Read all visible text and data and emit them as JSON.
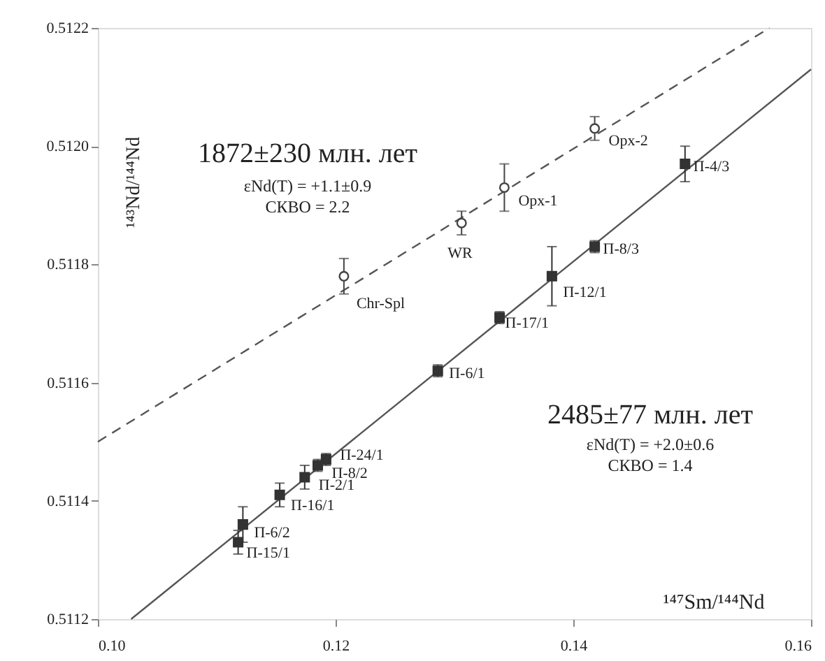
{
  "chart_data": {
    "type": "scatter",
    "xlabel": "¹⁴⁷Sm/¹⁴⁴Nd",
    "ylabel": "¹⁴³Nd/¹⁴⁴Nd",
    "xlim": [
      0.1,
      0.16
    ],
    "ylim": [
      0.5112,
      0.5122
    ],
    "xticks": [
      {
        "value": 0.1,
        "label": "0.10"
      },
      {
        "value": 0.12,
        "label": "0.12"
      },
      {
        "value": 0.14,
        "label": "0.14"
      },
      {
        "value": 0.16,
        "label": "0.16"
      }
    ],
    "yticks": [
      0.5112,
      0.5114,
      0.5116,
      0.5118,
      {
        "value": 0.512,
        "label": "0.5120"
      },
      0.5122
    ],
    "grid": false,
    "series": [
      {
        "type": "line",
        "color": "#555555",
        "line_style": "dashed",
        "x": [
          0.1,
          0.1565
        ],
        "values": [
          0.5115,
          0.5122
        ]
      },
      {
        "type": "line",
        "color": "#555555",
        "line_style": "solid",
        "x": [
          0.1028,
          0.16
        ],
        "values": [
          0.5112,
          0.51213
        ]
      },
      {
        "color": "#444444",
        "marker": "circle",
        "x": [
          0.1207,
          0.1306,
          0.1342,
          0.1418
        ],
        "values": [
          0.51178,
          0.51187,
          0.51193,
          0.51203
        ],
        "errors": [
          3e-05,
          2e-05,
          4e-05,
          2e-05
        ]
      },
      {
        "color": "#333333",
        "marker": "square",
        "x": [
          0.1494,
          0.1418,
          0.1382,
          0.1338,
          0.1286,
          0.1192,
          0.1185,
          0.1174,
          0.1153,
          0.1122,
          0.1118
        ],
        "values": [
          0.51197,
          0.51183,
          0.51178,
          0.51171,
          0.51162,
          0.51147,
          0.51146,
          0.51144,
          0.51141,
          0.51136,
          0.51133
        ],
        "errors": [
          3e-05,
          1e-05,
          5e-05,
          1e-05,
          1e-05,
          1e-05,
          1e-05,
          2e-05,
          2e-05,
          3e-05,
          2e-05
        ]
      }
    ],
    "annotations": [
      "1872±230 млн. лет",
      "εNd(T) = +1.1±0.9",
      "СКВО = 2.2",
      "2485±77 млн. лет",
      "εNd(T) = +2.0±0.6",
      "СКВО = 1.4",
      {
        "text": "Chr-Spl",
        "x": 0.1207,
        "y": 0.51178
      },
      {
        "text": "WR",
        "x": 0.1306,
        "y": 0.51187
      },
      {
        "text": "Opx-1",
        "x": 0.1342,
        "y": 0.51193
      },
      {
        "text": "Opx-2",
        "x": 0.1418,
        "y": 0.51203
      },
      {
        "text": "П-4/3",
        "x": 0.1494,
        "y": 0.51197
      },
      {
        "text": "П-8/3",
        "x": 0.1418,
        "y": 0.51183
      },
      {
        "text": "П-12/1",
        "x": 0.1382,
        "y": 0.51178
      },
      {
        "text": "П-17/1",
        "x": 0.1338,
        "y": 0.51171
      },
      {
        "text": "П-6/1",
        "x": 0.1286,
        "y": 0.51162
      },
      {
        "text": "П-24/1",
        "x": 0.1192,
        "y": 0.51147
      },
      {
        "text": "П-8/2",
        "x": 0.1185,
        "y": 0.51146
      },
      {
        "text": "П-2/1",
        "x": 0.1174,
        "y": 0.51144
      },
      {
        "text": "П-16/1",
        "x": 0.1153,
        "y": 0.51141
      },
      {
        "text": "П-6/2",
        "x": 0.1122,
        "y": 0.51136
      },
      {
        "text": "П-15/1",
        "x": 0.1118,
        "y": 0.51133
      }
    ]
  }
}
